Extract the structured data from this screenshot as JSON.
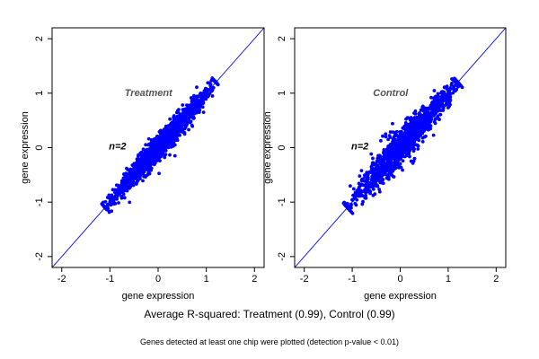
{
  "chart_data": [
    {
      "type": "scatter",
      "panel_label": "Treatment",
      "n_label": "n=2",
      "xlabel": "gene expression",
      "ylabel": "gene expression",
      "xlim": [
        -2.2,
        2.2
      ],
      "ylim": [
        -2.2,
        2.2
      ],
      "xticks": [
        -2,
        -1,
        0,
        1,
        2
      ],
      "yticks": [
        -2,
        -1,
        0,
        1,
        2
      ],
      "reference_line": "y = x",
      "point_color": "#0000ff",
      "line_color": "#0000ff",
      "point_range": [
        -1.1,
        1.2
      ],
      "spread": 0.07,
      "outlier_points": [
        [
          0.35,
          -0.15
        ],
        [
          -0.45,
          -0.35
        ],
        [
          0.55,
          0.25
        ],
        [
          -0.2,
          0.05
        ],
        [
          0.1,
          0.3
        ]
      ]
    },
    {
      "type": "scatter",
      "panel_label": "Control",
      "n_label": "n=2",
      "xlabel": "gene expression",
      "ylabel": "gene expression",
      "xlim": [
        -2.2,
        2.2
      ],
      "ylim": [
        -2.2,
        2.2
      ],
      "xticks": [
        -2,
        -1,
        0,
        1,
        2
      ],
      "yticks": [
        -2,
        -1,
        0,
        1,
        2
      ],
      "reference_line": "y = x",
      "point_color": "#0000ff",
      "line_color": "#0000ff",
      "point_range": [
        -1.1,
        1.2
      ],
      "spread": 0.09,
      "outlier_points": [
        [
          -0.3,
          0.2
        ],
        [
          -0.25,
          0.15
        ],
        [
          0.25,
          0.5
        ],
        [
          0.3,
          -0.2
        ],
        [
          -0.6,
          -0.35
        ],
        [
          0.15,
          0.55
        ],
        [
          -0.1,
          0.25
        ]
      ]
    }
  ],
  "captions": {
    "main": "Average R-squared: Treatment (0.99), Control (0.99)",
    "sub": "Genes detected at least one chip were plotted (detection p-value < 0.01)"
  }
}
